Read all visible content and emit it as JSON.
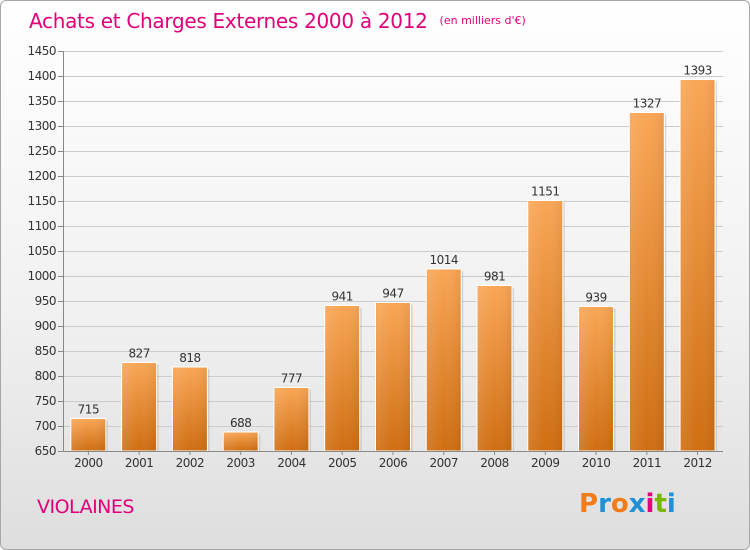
{
  "header": {
    "title": "Achats et Charges Externes 2000 à 2012",
    "subtitle": "(en milliers d'€)"
  },
  "commune": "VIOLAINES",
  "logo": {
    "text": "Proxiti",
    "letters": [
      "P",
      "r",
      "o",
      "x",
      "i",
      "t",
      "i"
    ],
    "colors": [
      "#f07d1a",
      "#1f8fd6",
      "#f07d1a",
      "#1f8fd6",
      "#e0007a",
      "#7ab800",
      "#1f8fd6"
    ]
  },
  "colors": {
    "accent": "#e0007a",
    "bar_top": "#f9a656",
    "bar_bottom": "#cf6e12",
    "grid": "#cccccc"
  },
  "chart_data": {
    "type": "bar",
    "title": "Achats et Charges Externes 2000 à 2012",
    "subtitle": "(en milliers d'€)",
    "categories": [
      "2000",
      "2001",
      "2002",
      "2003",
      "2004",
      "2005",
      "2006",
      "2007",
      "2008",
      "2009",
      "2010",
      "2011",
      "2012"
    ],
    "values": [
      715,
      827,
      818,
      688,
      777,
      941,
      947,
      1014,
      981,
      1151,
      939,
      1327,
      1393
    ],
    "ylim": [
      650,
      1450
    ],
    "yticks": [
      650,
      700,
      750,
      800,
      850,
      900,
      950,
      1000,
      1050,
      1100,
      1150,
      1200,
      1250,
      1300,
      1350,
      1400,
      1450
    ],
    "grid": true,
    "legend": "none",
    "data_labels": true
  }
}
